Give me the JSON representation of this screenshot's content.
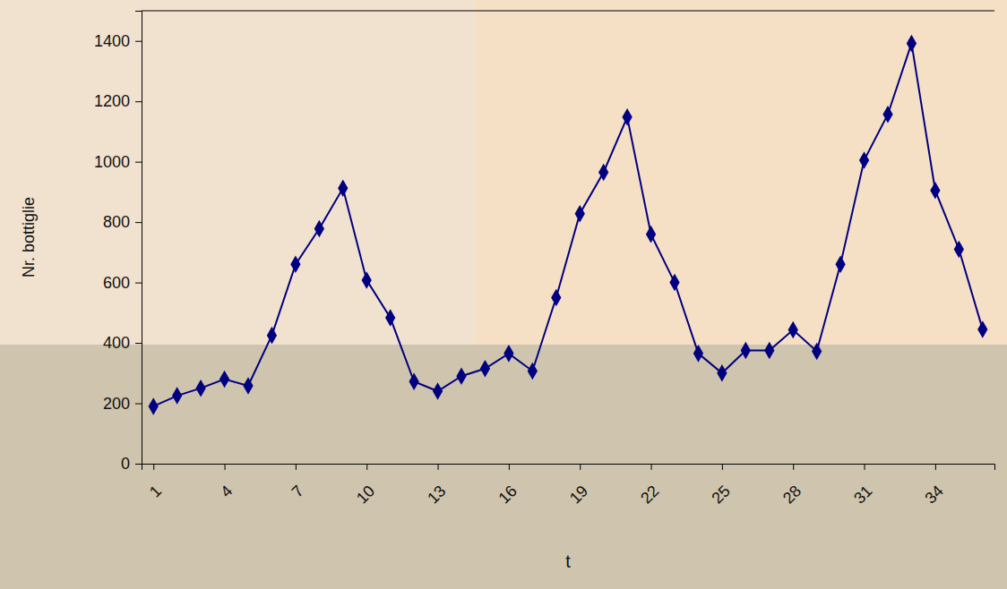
{
  "chart_data": {
    "type": "line",
    "x_label": "t",
    "y_label": "Nr. bottiglie",
    "x": [
      1,
      2,
      3,
      4,
      5,
      6,
      7,
      8,
      9,
      10,
      11,
      12,
      13,
      14,
      15,
      16,
      17,
      18,
      19,
      20,
      21,
      22,
      23,
      24,
      25,
      26,
      27,
      28,
      29,
      30,
      31,
      32,
      33,
      34,
      35,
      36
    ],
    "values": [
      190,
      225,
      250,
      280,
      258,
      425,
      660,
      778,
      912,
      608,
      483,
      272,
      240,
      290,
      315,
      365,
      307,
      550,
      828,
      965,
      1148,
      760,
      600,
      365,
      300,
      375,
      375,
      443,
      372,
      660,
      1005,
      1157,
      1392,
      905,
      710,
      445
    ],
    "color": "#000080",
    "marker": "diamond",
    "xlim": [
      0.5,
      36.5
    ],
    "xticks": [
      1,
      4,
      7,
      10,
      13,
      16,
      19,
      22,
      25,
      28,
      31,
      34
    ],
    "ylim": [
      0,
      1500
    ],
    "yticks": [
      0,
      200,
      400,
      600,
      800,
      1000,
      1200,
      1400
    ],
    "grid": false
  }
}
